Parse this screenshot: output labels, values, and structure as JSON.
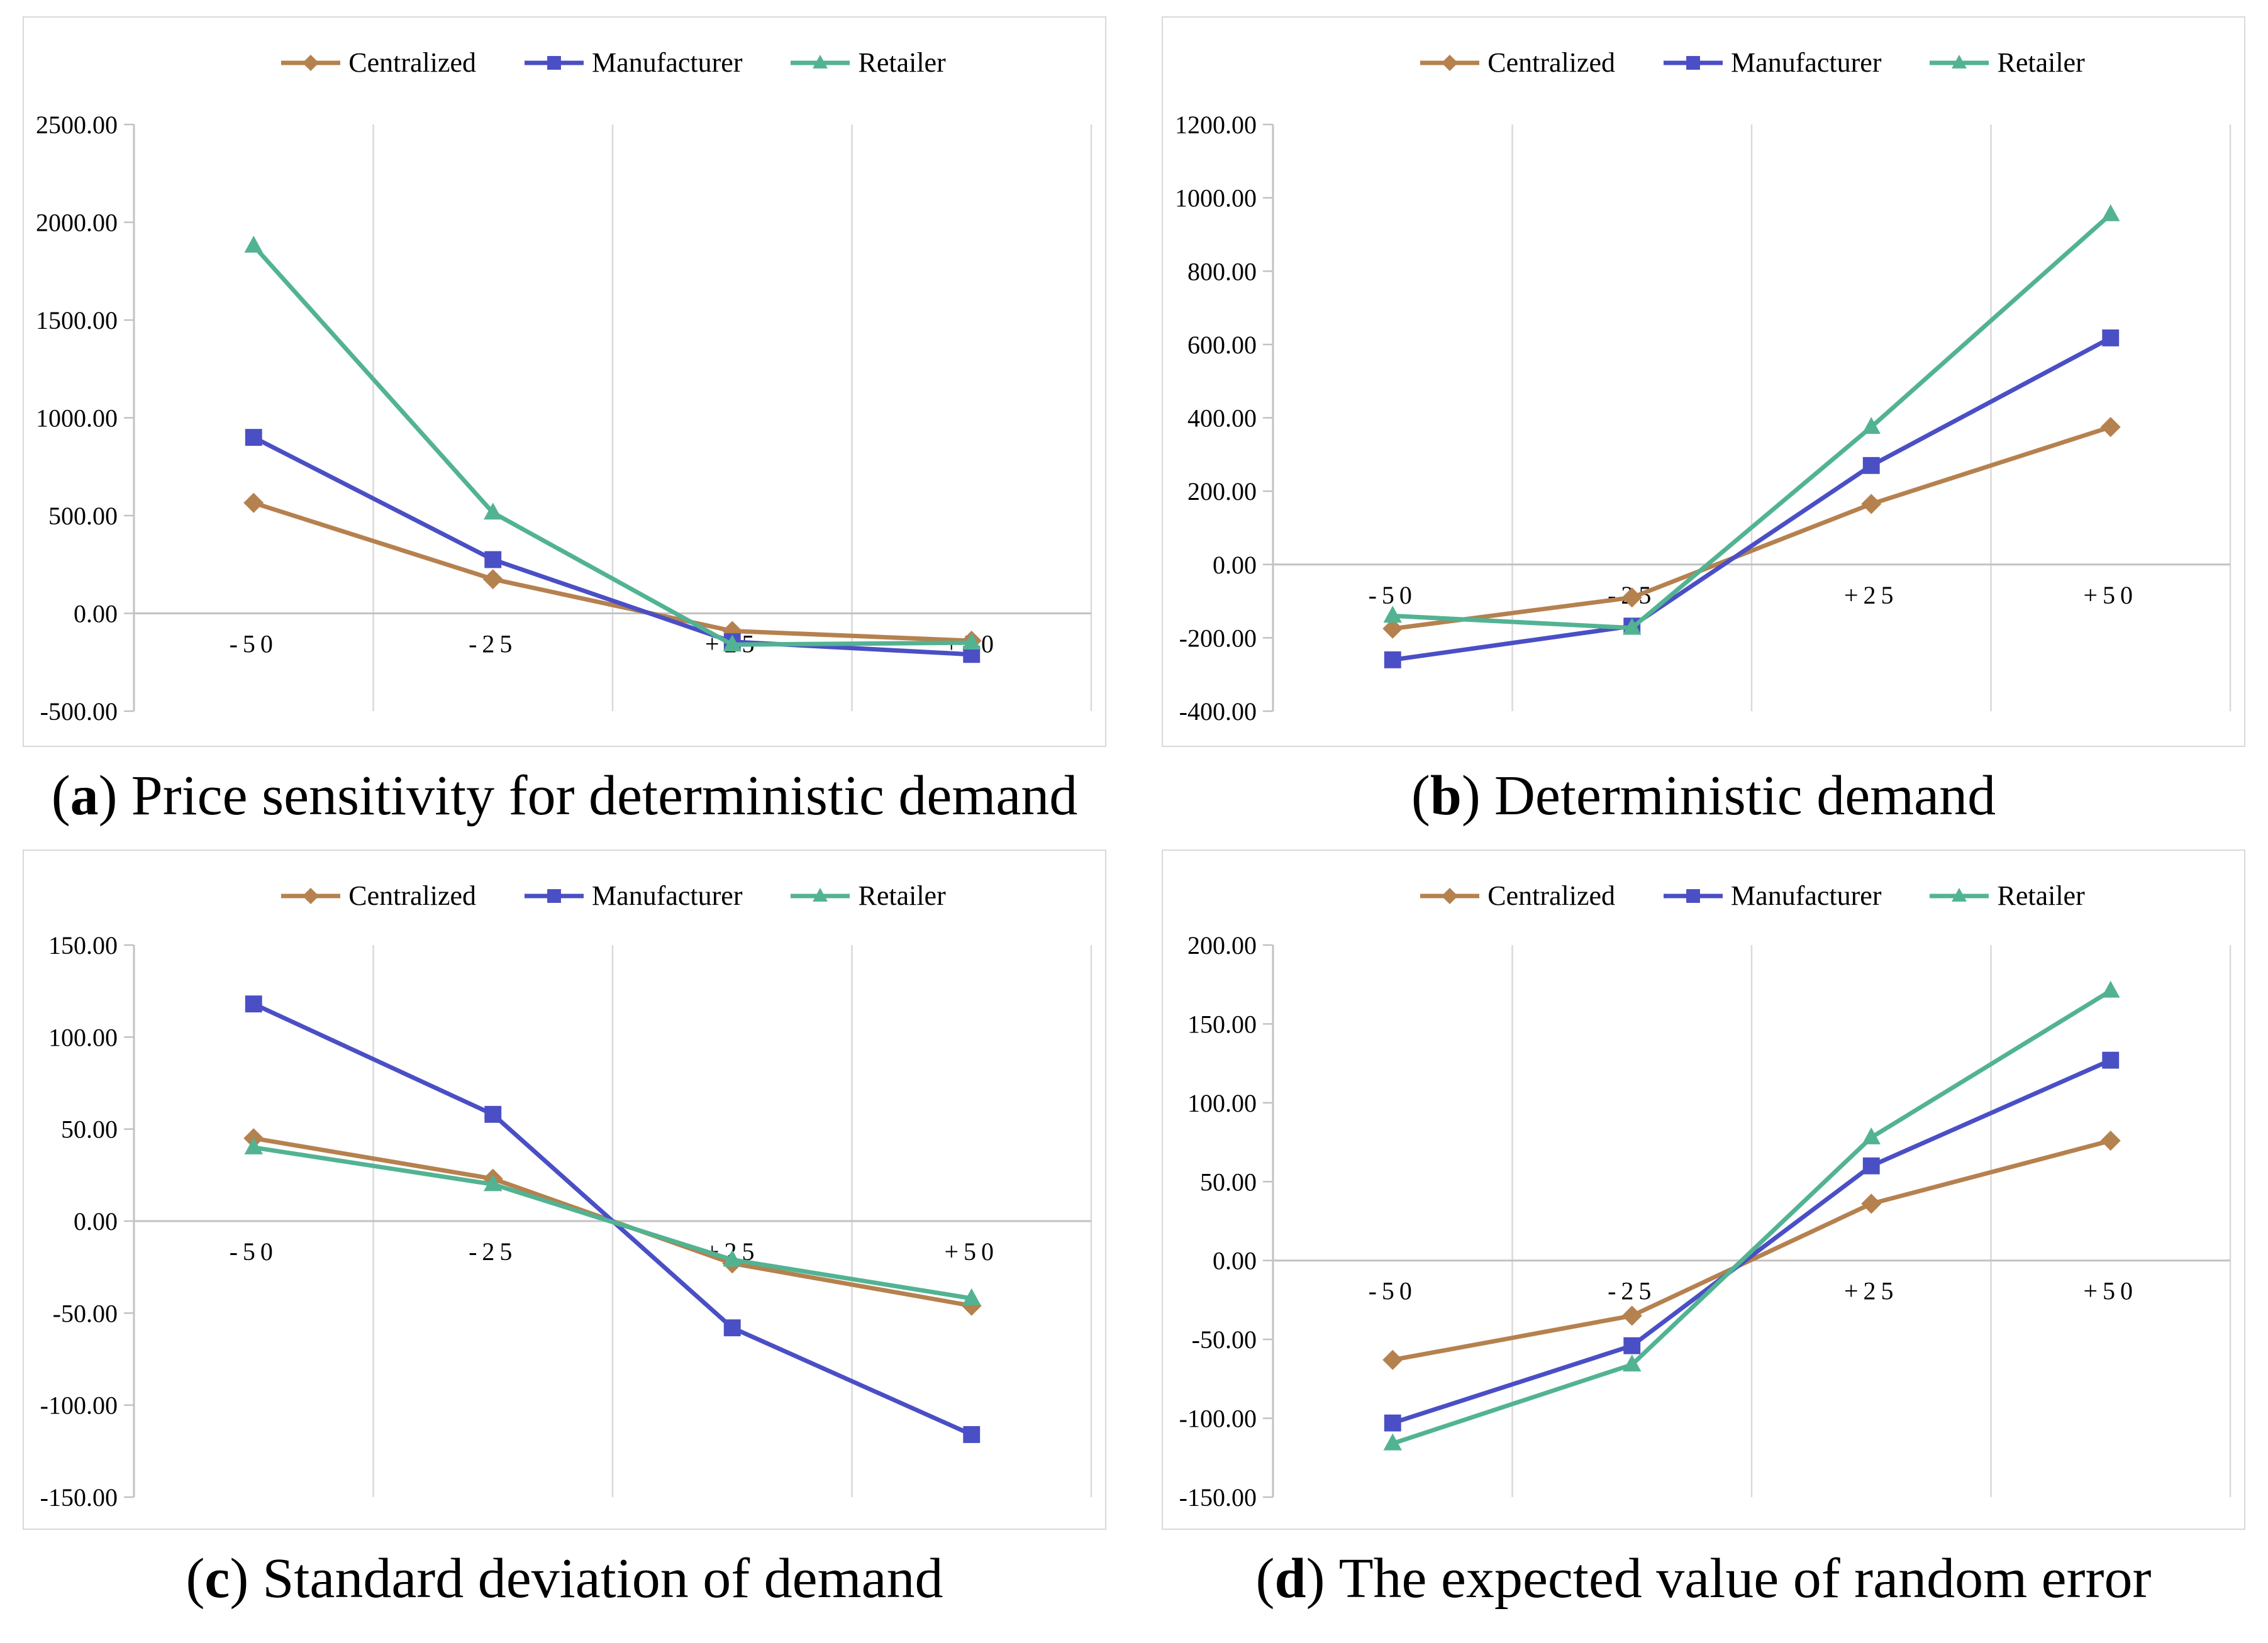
{
  "colors": {
    "centralized": "#b5814f",
    "manufacturer": "#4a4fc5",
    "retailer": "#52b392",
    "gridline": "#d9d9d9",
    "axis": "#c2c2c2",
    "text": "#000000",
    "panel_border": "#d9d9d9"
  },
  "legend_labels": [
    "Centralized",
    "Manufacturer",
    "Retailer"
  ],
  "chart_data": [
    {
      "id": "a",
      "type": "line",
      "caption": {
        "pre": "(",
        "letter": "a",
        "post": ")",
        "text": "Price sensitivity for deterministic demand"
      },
      "x_categories": [
        "-50",
        "-25",
        "+25",
        "+50"
      ],
      "y_axis": {
        "min": -500,
        "max": 2500,
        "step": 500
      },
      "grid": "vertical-category-boundaries, zero-line only",
      "legend_position": "top-center",
      "series": [
        {
          "name": "Centralized",
          "marker": "diamond",
          "color": "centralized",
          "values": [
            565,
            175,
            -90,
            -140
          ]
        },
        {
          "name": "Manufacturer",
          "marker": "square",
          "color": "manufacturer",
          "values": [
            900,
            275,
            -145,
            -210
          ]
        },
        {
          "name": "Retailer",
          "marker": "triangle",
          "color": "retailer",
          "values": [
            1880,
            515,
            -160,
            -150
          ]
        }
      ]
    },
    {
      "id": "b",
      "type": "line",
      "caption": {
        "pre": "(",
        "letter": "b",
        "post": ")",
        "text": "Deterministic demand"
      },
      "x_categories": [
        "-50",
        "-25",
        "+25",
        "+50"
      ],
      "y_axis": {
        "min": -400,
        "max": 1200,
        "step": 200
      },
      "grid": "vertical-category-boundaries, zero-line only",
      "legend_position": "top-center",
      "series": [
        {
          "name": "Centralized",
          "marker": "diamond",
          "color": "centralized",
          "values": [
            -175,
            -90,
            165,
            375
          ]
        },
        {
          "name": "Manufacturer",
          "marker": "square",
          "color": "manufacturer",
          "values": [
            -260,
            -168,
            270,
            618
          ]
        },
        {
          "name": "Retailer",
          "marker": "triangle",
          "color": "retailer",
          "values": [
            -140,
            -173,
            375,
            955
          ]
        }
      ]
    },
    {
      "id": "c",
      "type": "line",
      "caption": {
        "pre": "(",
        "letter": "c",
        "post": ")",
        "text": "Standard deviation of demand"
      },
      "x_categories": [
        "-50",
        "-25",
        "+25",
        "+50"
      ],
      "y_axis": {
        "min": -150,
        "max": 150,
        "step": 50
      },
      "grid": "vertical-category-boundaries, zero-line only",
      "legend_position": "top-center",
      "series": [
        {
          "name": "Centralized",
          "marker": "diamond",
          "color": "centralized",
          "values": [
            45,
            23,
            -23,
            -46
          ]
        },
        {
          "name": "Manufacturer",
          "marker": "square",
          "color": "manufacturer",
          "values": [
            118,
            58,
            -58,
            -116
          ]
        },
        {
          "name": "Retailer",
          "marker": "triangle",
          "color": "retailer",
          "values": [
            40,
            20,
            -21,
            -42
          ]
        }
      ]
    },
    {
      "id": "d",
      "type": "line",
      "caption": {
        "pre": "(",
        "letter": "d",
        "post": ")",
        "text": "The expected value of random error"
      },
      "x_categories": [
        "-50",
        "-25",
        "+25",
        "+50"
      ],
      "y_axis": {
        "min": -150,
        "max": 200,
        "step": 50
      },
      "grid": "vertical-category-boundaries, zero-line only",
      "legend_position": "top-center",
      "series": [
        {
          "name": "Centralized",
          "marker": "diamond",
          "color": "centralized",
          "values": [
            -63,
            -35,
            36,
            76
          ]
        },
        {
          "name": "Manufacturer",
          "marker": "square",
          "color": "manufacturer",
          "values": [
            -103,
            -54,
            60,
            127
          ]
        },
        {
          "name": "Retailer",
          "marker": "triangle",
          "color": "retailer",
          "values": [
            -116,
            -66,
            78,
            171
          ]
        }
      ]
    }
  ]
}
